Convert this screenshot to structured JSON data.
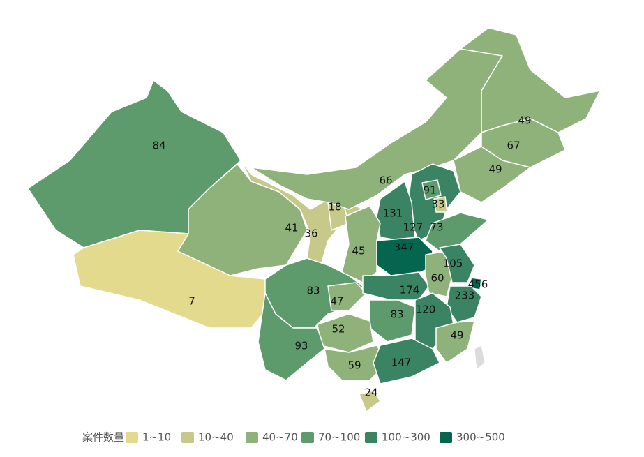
{
  "legend": {
    "title": "案件数量",
    "bins": [
      {
        "label": "1~10",
        "range": [
          1,
          10
        ],
        "color": "#e3da8e"
      },
      {
        "label": "10~40",
        "range": [
          10,
          40
        ],
        "color": "#c6c98a"
      },
      {
        "label": "40~70",
        "range": [
          40,
          70
        ],
        "color": "#8fb27b"
      },
      {
        "label": "70~100",
        "range": [
          70,
          100
        ],
        "color": "#5e9b6c"
      },
      {
        "label": "100~300",
        "range": [
          100,
          300
        ],
        "color": "#3a8463"
      },
      {
        "label": "300~500",
        "range": [
          300,
          500
        ],
        "color": "#05664f"
      }
    ]
  },
  "regions": [
    84,
    7,
    41,
    36,
    18,
    66,
    49,
    67,
    49,
    127,
    91,
    33,
    131,
    73,
    347,
    45,
    83,
    47,
    174,
    60,
    105,
    456,
    233,
    83,
    120,
    52,
    93,
    59,
    147,
    49,
    24
  ]
}
